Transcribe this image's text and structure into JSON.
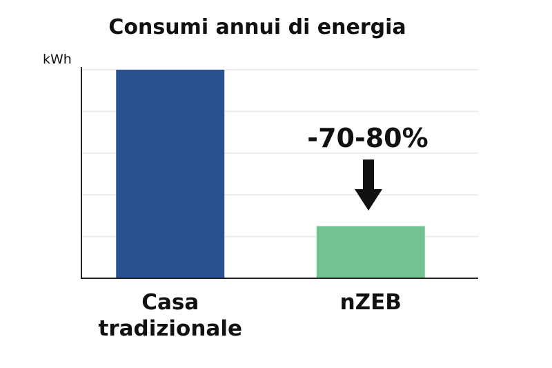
{
  "chart_data": {
    "type": "bar",
    "title": "Consumi annui di energia",
    "xlabel": "",
    "ylabel": "kWh",
    "categories": [
      "Casa tradizionale",
      "nZEB"
    ],
    "category_lines": [
      [
        "Casa",
        "tradizionale"
      ],
      [
        "nZEB"
      ]
    ],
    "values": [
      100,
      25
    ],
    "ylim": [
      0,
      100
    ],
    "yticks": [
      0,
      20,
      40,
      60,
      80,
      100
    ],
    "grid": true,
    "bar_colors": [
      "#2a5292",
      "#72c391"
    ],
    "annotation": {
      "text": "-70-80%",
      "target_category": "nZEB",
      "icon": "down-arrow-icon"
    }
  },
  "colors": {
    "text": "#111111",
    "grid": "#e6e6e6",
    "axis": "#222222",
    "arrow": "#111111"
  }
}
